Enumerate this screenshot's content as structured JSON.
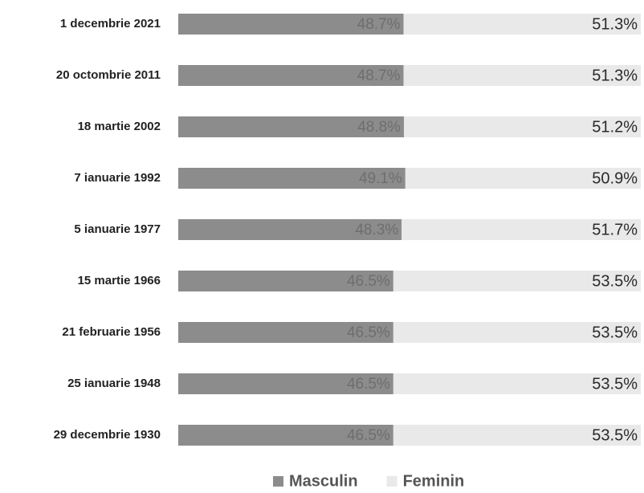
{
  "chart_data": {
    "type": "bar",
    "orientation": "horizontal",
    "stacked": true,
    "categories": [
      "1 decembrie 2021",
      "20 octombrie 2011",
      "18 martie 2002",
      "7 ianuarie 1992",
      "5 ianuarie 1977",
      "15 martie 1966",
      "21 februarie 1956",
      "25 ianuarie 1948",
      "29 decembrie 1930"
    ],
    "series": [
      {
        "name": "Masculin",
        "color": "#8c8c8c",
        "values": [
          48.7,
          48.7,
          48.8,
          49.1,
          48.3,
          46.5,
          46.5,
          46.5,
          46.5
        ],
        "value_labels": [
          "48.7%",
          "48.7%",
          "48.8%",
          "49.1%",
          "48.3%",
          "46.5%",
          "46.5%",
          "46.5%",
          "46.5%"
        ]
      },
      {
        "name": "Feminin",
        "color": "#e9e9e9",
        "values": [
          51.3,
          51.3,
          51.2,
          50.9,
          51.7,
          53.5,
          53.5,
          53.5,
          53.5
        ],
        "value_labels": [
          "51.3%",
          "51.3%",
          "51.2%",
          "50.9%",
          "51.7%",
          "53.5%",
          "53.5%",
          "53.5%",
          "53.5%"
        ]
      }
    ],
    "legend": "bottom"
  }
}
